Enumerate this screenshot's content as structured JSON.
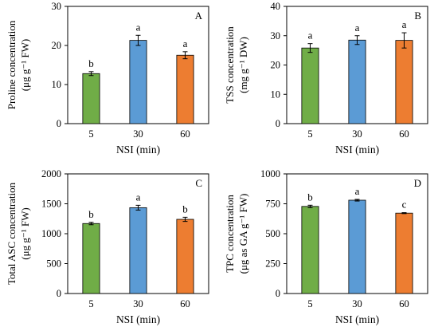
{
  "chart_data": [
    {
      "type": "bar",
      "panel": "A",
      "categories": [
        "5",
        "30",
        "60"
      ],
      "values": [
        12.8,
        21.3,
        17.5
      ],
      "errors": [
        0.5,
        1.3,
        0.9
      ],
      "letters": [
        "b",
        "a",
        "a"
      ],
      "colors": [
        "#70ad47",
        "#5b9bd5",
        "#ed7d31"
      ],
      "xlabel": "NSI (min)",
      "ylabel_lines": [
        "Proline concentration",
        "(μg g⁻¹ FW)"
      ],
      "ylim": [
        0,
        30
      ],
      "yticks": [
        0,
        10,
        20,
        30
      ],
      "ytick_labels": [
        "0",
        "10",
        "20",
        "30"
      ],
      "grid": false
    },
    {
      "type": "bar",
      "panel": "B",
      "categories": [
        "5",
        "30",
        "60"
      ],
      "values": [
        25.8,
        28.5,
        28.4
      ],
      "errors": [
        1.5,
        1.5,
        2.6
      ],
      "letters": [
        "a",
        "a",
        "a"
      ],
      "colors": [
        "#70ad47",
        "#5b9bd5",
        "#ed7d31"
      ],
      "xlabel": "NSI (min)",
      "ylabel_lines": [
        "TSS concentration",
        "(mg g⁻¹ DW)"
      ],
      "ylim": [
        0,
        40
      ],
      "yticks": [
        0,
        10,
        20,
        30,
        40
      ],
      "ytick_labels": [
        "0",
        "10",
        "20",
        "30",
        "40"
      ],
      "grid": false
    },
    {
      "type": "bar",
      "panel": "C",
      "categories": [
        "5",
        "30",
        "60"
      ],
      "values": [
        1170,
        1435,
        1240
      ],
      "errors": [
        20,
        40,
        35
      ],
      "letters": [
        "b",
        "a",
        "b"
      ],
      "colors": [
        "#70ad47",
        "#5b9bd5",
        "#ed7d31"
      ],
      "xlabel": "NSI (min)",
      "ylabel_lines": [
        "Total ASC concentration",
        "(μg g⁻¹ FW)"
      ],
      "ylim": [
        0,
        2000
      ],
      "yticks": [
        0,
        500,
        1000,
        1500,
        2000
      ],
      "ytick_labels": [
        "0",
        "500",
        "1000",
        "1500",
        "2000"
      ],
      "grid": false
    },
    {
      "type": "bar",
      "panel": "D",
      "categories": [
        "5",
        "30",
        "60"
      ],
      "values": [
        728,
        780,
        672
      ],
      "errors": [
        10,
        7,
        4
      ],
      "letters": [
        "b",
        "a",
        "c"
      ],
      "colors": [
        "#70ad47",
        "#5b9bd5",
        "#ed7d31"
      ],
      "xlabel": "NSI (min)",
      "ylabel_lines": [
        "TPC concentration",
        "(μg as GA g⁻¹ FW)"
      ],
      "ylim": [
        0,
        1000
      ],
      "yticks": [
        0,
        250,
        500,
        750,
        1000
      ],
      "ytick_labels": [
        "0",
        "250",
        "500",
        "750",
        "1000"
      ],
      "grid": false
    }
  ]
}
